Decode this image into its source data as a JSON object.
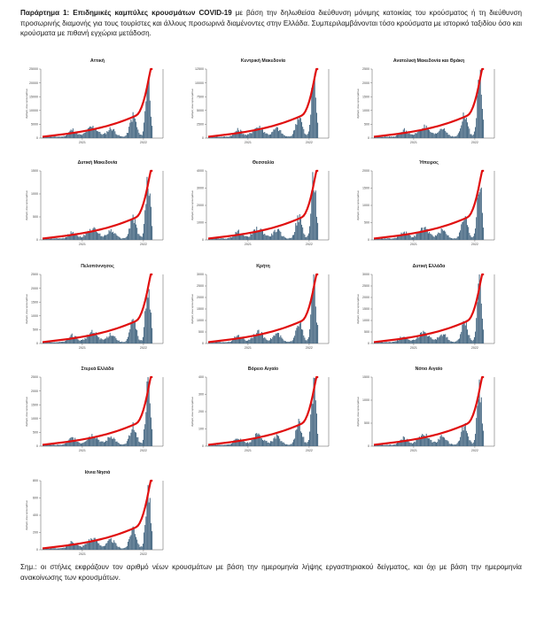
{
  "header": {
    "title": "Παράρτημα 1:  Επιδημικές καμπύλες κρουσμάτων COVID-19",
    "text": " με βάση την δηλωθείσα διεύθυνση μόνιμης κατοικίας του κρούσματος ή τη διεύθυνση προσωρινής διαμονής για τους τουρίστες και άλλους προσωρινά διαμένοντες στην Ελλάδα. Συμπεριλαμβάνονται τόσο κρούσματα με ιστορικό ταξιδίου όσο και κρούσματα με πιθανή εγχώρια μετάδοση."
  },
  "footer": {
    "text": "Σημ.: οι στήλες εκφράζουν τον αριθμό νέων κρουσμάτων με βάση την ημερομηνία λήψης εργαστηριακού δείγματος, και όχι με βάση την ημερομηνία ανακοίνωσης των κρουσμάτων."
  },
  "colors": {
    "bar": "#4a6b85",
    "line": "#e01010"
  },
  "x_ticks": [
    "2021",
    "2022"
  ],
  "chart_data": [
    {
      "type": "bar",
      "title": "Αττική",
      "ylim": [
        0,
        25000
      ],
      "y_ticks": [
        "0",
        "5000",
        "10000",
        "15000",
        "20000",
        "25000"
      ],
      "ylabel": "Αριθμός νέων κρουσμάτων"
    },
    {
      "type": "bar",
      "title": "Κεντρική Μακεδονία",
      "ylim": [
        0,
        12500
      ],
      "y_ticks": [
        "0",
        "2500",
        "5000",
        "7500",
        "10000",
        "12500"
      ],
      "ylabel": "Αριθμός νέων κρουσμάτων"
    },
    {
      "type": "bar",
      "title": "Ανατολική Μακεδονία και Θράκη",
      "ylim": [
        0,
        2500
      ],
      "y_ticks": [
        "0",
        "500",
        "1000",
        "1500",
        "2000",
        "2500"
      ],
      "ylabel": "Αριθμός νέων κρουσμάτων"
    },
    {
      "type": "bar",
      "title": "Δυτική Μακεδονία",
      "ylim": [
        0,
        1500
      ],
      "y_ticks": [
        "0",
        "500",
        "1000",
        "1500"
      ],
      "ylabel": "Αριθμός νέων κρουσμάτων"
    },
    {
      "type": "bar",
      "title": "Θεσσαλία",
      "ylim": [
        0,
        4000
      ],
      "y_ticks": [
        "0",
        "1000",
        "2000",
        "3000",
        "4000"
      ],
      "ylabel": "Αριθμός νέων κρουσμάτων"
    },
    {
      "type": "bar",
      "title": "Ήπειρος",
      "ylim": [
        0,
        2000
      ],
      "y_ticks": [
        "0",
        "500",
        "1000",
        "1500",
        "2000"
      ],
      "ylabel": "Αριθμός νέων κρουσμάτων"
    },
    {
      "type": "bar",
      "title": "Πελοπόννησος",
      "ylim": [
        0,
        2500
      ],
      "y_ticks": [
        "0",
        "500",
        "1000",
        "1500",
        "2000",
        "2500"
      ],
      "ylabel": "Αριθμός νέων κρουσμάτων"
    },
    {
      "type": "bar",
      "title": "Κρήτη",
      "ylim": [
        0,
        3000
      ],
      "y_ticks": [
        "0",
        "500",
        "1000",
        "1500",
        "2000",
        "2500",
        "3000"
      ],
      "ylabel": "Αριθμός νέων κρουσμάτων"
    },
    {
      "type": "bar",
      "title": "Δυτική Ελλάδα",
      "ylim": [
        0,
        3000
      ],
      "y_ticks": [
        "0",
        "500",
        "1000",
        "1500",
        "2000",
        "2500",
        "3000"
      ],
      "ylabel": "Αριθμός νέων κρουσμάτων"
    },
    {
      "type": "bar",
      "title": "Στερεά Ελλάδα",
      "ylim": [
        0,
        2500
      ],
      "y_ticks": [
        "0",
        "500",
        "1000",
        "1500",
        "2000",
        "2500"
      ],
      "ylabel": "Αριθμός νέων κρουσμάτων"
    },
    {
      "type": "bar",
      "title": "Βόρειο Αιγαίο",
      "ylim": [
        0,
        400
      ],
      "y_ticks": [
        "0",
        "100",
        "200",
        "300",
        "400"
      ],
      "ylabel": "Αριθμός νέων κρουσμάτων"
    },
    {
      "type": "bar",
      "title": "Νότιο Αιγαίο",
      "ylim": [
        0,
        1500
      ],
      "y_ticks": [
        "0",
        "500",
        "1000",
        "1500"
      ],
      "ylabel": "Αριθμός νέων κρουσμάτων"
    },
    {
      "type": "bar",
      "title": "Ιόνια Νησιά",
      "ylim": [
        0,
        800
      ],
      "y_ticks": [
        "0",
        "200",
        "400",
        "600",
        "800"
      ],
      "ylabel": "Αριθμός νέων κρουσμάτων"
    }
  ]
}
